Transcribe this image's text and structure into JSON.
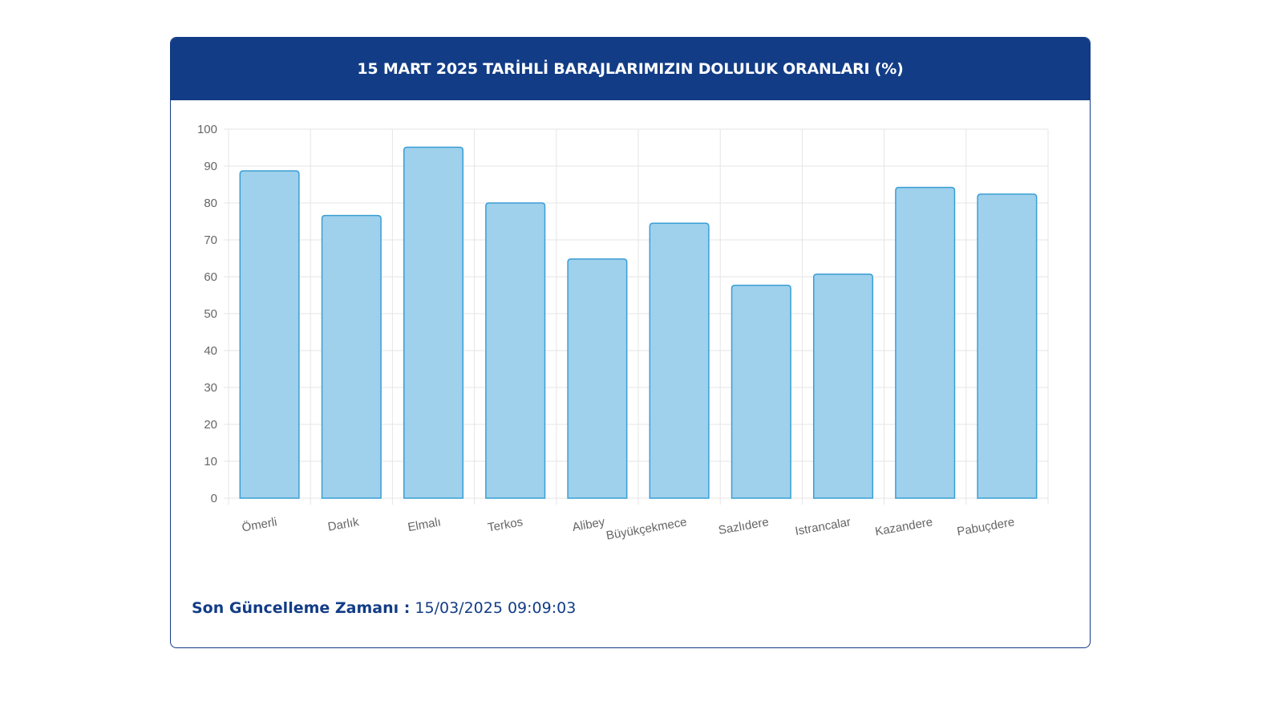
{
  "header": {
    "title": "15 MART 2025 TARİHLİ BARAJLARIMIZIN DOLULUK ORANLARI (%)"
  },
  "footer": {
    "label": "Son Güncelleme Zamanı :",
    "value": "15/03/2025 09:09:03"
  },
  "colors": {
    "header_bg": "#123c86",
    "bar_fill": "#9fd0ec",
    "bar_stroke": "#3a9fd4",
    "grid": "#e5e5e5",
    "tick_text": "#666666"
  },
  "chart_data": {
    "type": "bar",
    "title": "15 MART 2025 TARİHLİ BARAJLARIMIZIN DOLULUK ORANLARI (%)",
    "categories": [
      "Ömerli",
      "Darlık",
      "Elmalı",
      "Terkos",
      "Alibey",
      "Büyükçekmece",
      "Sazlıdere",
      "Istrancalar",
      "Kazandere",
      "Pabuçdere"
    ],
    "values": [
      88.7,
      76.6,
      95.1,
      80.0,
      64.8,
      74.5,
      57.7,
      60.7,
      84.2,
      82.4
    ],
    "ylim": [
      0,
      100
    ],
    "yticks": [
      0,
      10,
      20,
      30,
      40,
      50,
      60,
      70,
      80,
      90,
      100
    ],
    "grid": true,
    "legend": "none",
    "xlabel": "",
    "ylabel": ""
  }
}
